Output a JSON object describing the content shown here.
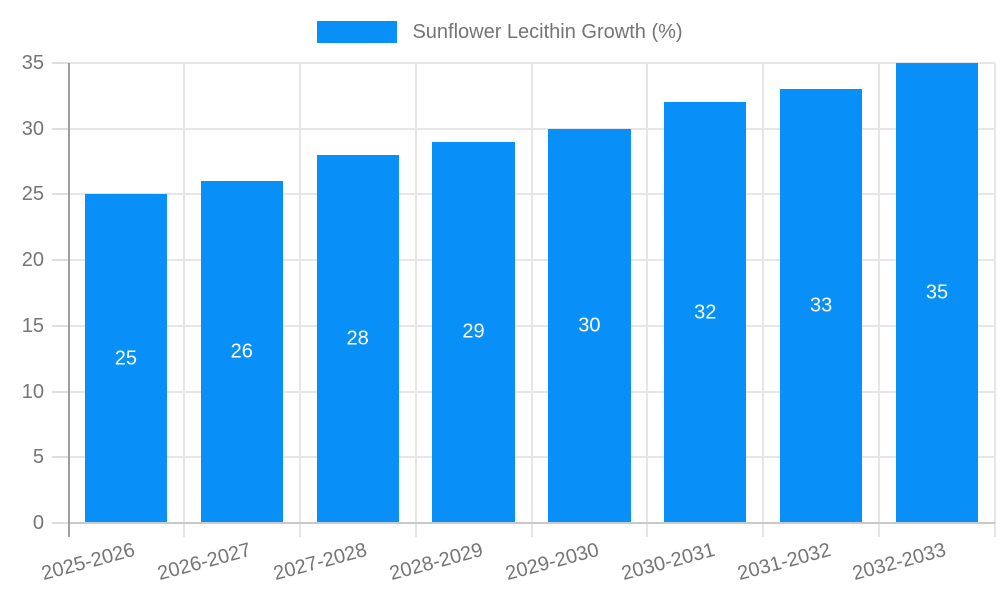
{
  "chart_data": {
    "type": "bar",
    "title": "Sunflower Lecithin Growth (%)",
    "legend": {
      "label": "Sunflower Lecithin Growth (%)",
      "position": "top"
    },
    "categories": [
      "2025-2026",
      "2026-2027",
      "2027-2028",
      "2028-2029",
      "2029-2030",
      "2030-2031",
      "2031-2032",
      "2032-2033"
    ],
    "series": [
      {
        "name": "Sunflower Lecithin Growth (%)",
        "values": [
          25,
          26,
          28,
          29,
          30,
          32,
          33,
          35
        ]
      }
    ],
    "value_labels": [
      "25",
      "26",
      "28",
      "29",
      "30",
      "32",
      "33",
      "35"
    ],
    "xlabel": "",
    "ylabel": "",
    "ylim": [
      0,
      35
    ],
    "ytick_step": 5,
    "yticks": [
      0,
      5,
      10,
      15,
      20,
      25,
      30,
      35
    ],
    "grid": true,
    "x_label_rotation_deg": -15,
    "colors": {
      "bar": "#0890f8",
      "value_label": "#ffffff",
      "axis_text": "#757575",
      "grid": "#e6e6e6",
      "tick": "#dedede",
      "y_axis_line": "#9e9e9e",
      "x_axis_line": "#c9c9c9"
    }
  }
}
